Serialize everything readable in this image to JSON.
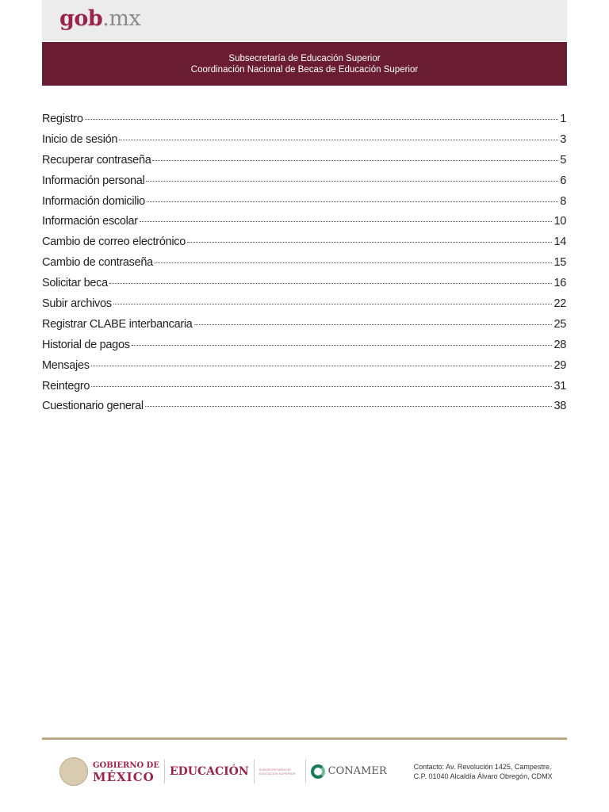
{
  "header": {
    "logo_main": "gob",
    "logo_suffix": ".mx",
    "line1": "Subsecretaría de Educación Superior",
    "line2": "Coordinación Nacional de Becas de Educación Superior"
  },
  "toc": [
    {
      "label": "Registro",
      "page": "1"
    },
    {
      "label": "Inicio de sesión",
      "page": "3"
    },
    {
      "label": "Recuperar contraseña",
      "page": "5"
    },
    {
      "label": "Información personal",
      "page": "6"
    },
    {
      "label": "Información domicilio",
      "page": "8"
    },
    {
      "label": "Información escolar",
      "page": "10"
    },
    {
      "label": "Cambio de correo electrónico",
      "page": "14"
    },
    {
      "label": "Cambio de contraseña",
      "page": "15"
    },
    {
      "label": "Solicitar beca",
      "page": "16"
    },
    {
      "label": "Subir archivos",
      "page": "22"
    },
    {
      "label": "Registrar CLABE interbancaria",
      "page": "25"
    },
    {
      "label": "Historial de pagos",
      "page": "28"
    },
    {
      "label": "Mensajes",
      "page": "29"
    },
    {
      "label": "Reintegro",
      "page": "31"
    },
    {
      "label": "Cuestionario general",
      "page": "38"
    }
  ],
  "footer": {
    "gob_line1": "GOBIERNO DE",
    "gob_line2": "MÉXICO",
    "edu": "EDUCACIÓN",
    "sub": "SUBSECRETARÍA DE EDUCACIÓN SUPERIOR",
    "conamer": "CONAMER",
    "contact_label": "Contacto:",
    "contact_line1": " Av. Revolución 1425, Campestre,",
    "contact_line2": "C.P. 01040 Alcaldía Álvaro Obregón, CDMX"
  },
  "colors": {
    "brand": "#691c32",
    "accent": "#9d2449",
    "gold": "#bba98a"
  }
}
